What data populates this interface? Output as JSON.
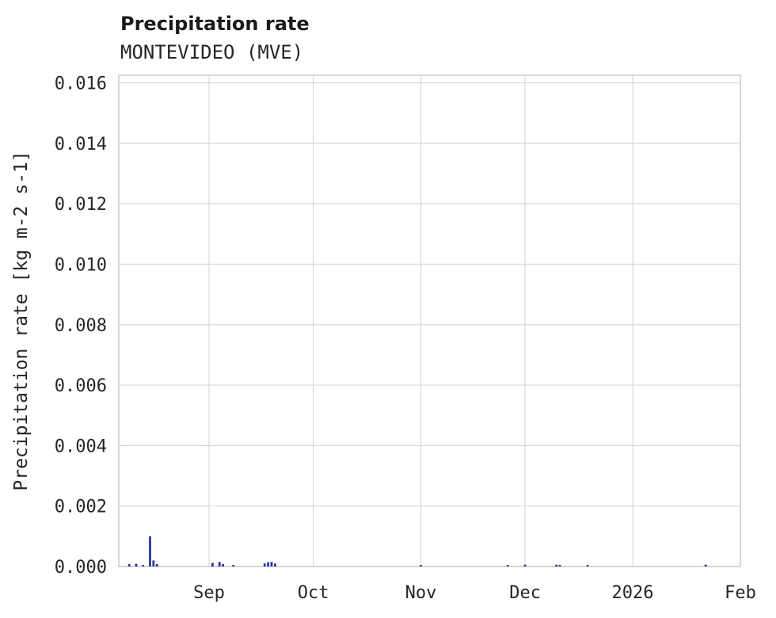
{
  "chart_data": {
    "type": "bar",
    "title": "Precipitation rate",
    "subtitle": "MONTEVIDEO (MVE)",
    "ylabel": "Precipitation rate [kg m-2 s-1]",
    "xlabel": "",
    "ylim": [
      0,
      0.01625
    ],
    "yticks": [
      0.0,
      0.002,
      0.004,
      0.006,
      0.008,
      0.01,
      0.012,
      0.014,
      0.016
    ],
    "ytick_labels": [
      "0.000",
      "0.002",
      "0.004",
      "0.006",
      "0.008",
      "0.010",
      "0.012",
      "0.014",
      "0.016"
    ],
    "x_start": "2025-08-06",
    "x_end": "2026-02-01",
    "xticks": [
      {
        "date": "2025-09-01",
        "label": "Sep"
      },
      {
        "date": "2025-10-01",
        "label": "Oct"
      },
      {
        "date": "2025-11-01",
        "label": "Nov"
      },
      {
        "date": "2025-12-01",
        "label": "Dec"
      },
      {
        "date": "2026-01-01",
        "label": "2026"
      },
      {
        "date": "2026-02-01",
        "label": "Feb"
      }
    ],
    "grid": true,
    "legend": false,
    "colors": {
      "bar": "#2b35a0",
      "grid": "#d9d9d9",
      "border": "#c9c9c9",
      "text": "#262626"
    },
    "points": [
      {
        "date": "2025-08-09",
        "value": 8e-05
      },
      {
        "date": "2025-08-11",
        "value": 9e-05
      },
      {
        "date": "2025-08-13",
        "value": 5e-05
      },
      {
        "date": "2025-08-15",
        "value": 0.001
      },
      {
        "date": "2025-08-16",
        "value": 0.0002
      },
      {
        "date": "2025-08-17",
        "value": 8e-05
      },
      {
        "date": "2025-09-02",
        "value": 0.00012
      },
      {
        "date": "2025-09-04",
        "value": 0.00015
      },
      {
        "date": "2025-09-05",
        "value": 8e-05
      },
      {
        "date": "2025-09-08",
        "value": 5e-05
      },
      {
        "date": "2025-09-17",
        "value": 0.0001
      },
      {
        "date": "2025-09-18",
        "value": 0.00014
      },
      {
        "date": "2025-09-19",
        "value": 0.00015
      },
      {
        "date": "2025-09-20",
        "value": 0.0001
      },
      {
        "date": "2025-11-01",
        "value": 5e-05
      },
      {
        "date": "2025-11-26",
        "value": 5e-05
      },
      {
        "date": "2025-12-01",
        "value": 6e-05
      },
      {
        "date": "2025-12-10",
        "value": 6e-05
      },
      {
        "date": "2025-12-11",
        "value": 5e-05
      },
      {
        "date": "2025-12-19",
        "value": 5e-05
      },
      {
        "date": "2026-01-22",
        "value": 6e-05
      }
    ]
  }
}
